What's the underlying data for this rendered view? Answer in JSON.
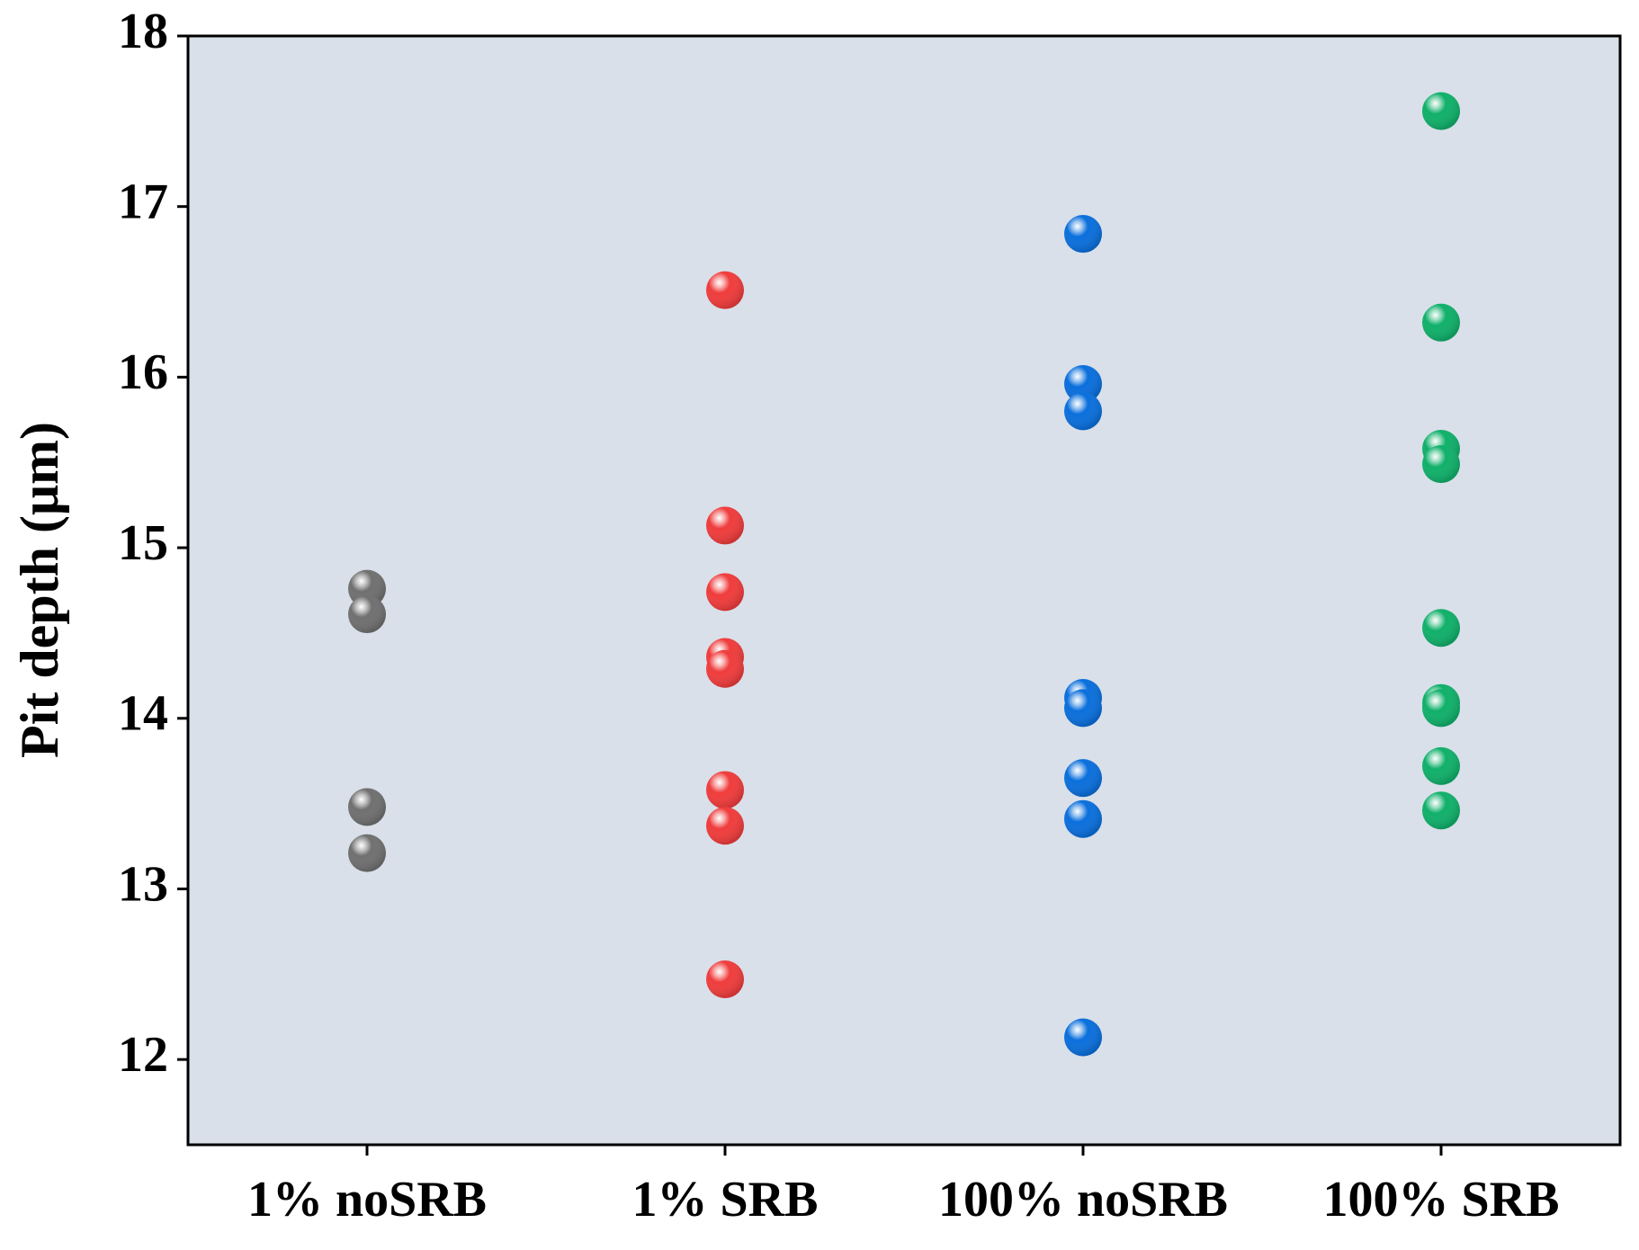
{
  "chart_data": {
    "type": "strip",
    "y_label": "Pit depth (μm)",
    "categories": [
      "1% noSRB",
      "1% SRB",
      "100% noSRB",
      "100% SRB"
    ],
    "series": [
      {
        "color": "#707070",
        "values": [
          14.76,
          14.61,
          13.48,
          13.21
        ]
      },
      {
        "color": "#f03c3c",
        "values": [
          16.51,
          15.13,
          14.74,
          14.36,
          14.29,
          13.58,
          13.37,
          12.47
        ]
      },
      {
        "color": "#0a6fdc",
        "values": [
          16.84,
          15.96,
          15.8,
          14.12,
          14.06,
          13.65,
          13.41,
          12.13
        ]
      },
      {
        "color": "#10b06a",
        "values": [
          17.56,
          16.32,
          15.58,
          15.49,
          14.53,
          14.09,
          14.06,
          13.72,
          13.46
        ]
      }
    ],
    "ylim": [
      11.5,
      18
    ],
    "yticks": [
      12,
      13,
      14,
      15,
      16,
      17,
      18
    ],
    "background": "#d9e0ea"
  }
}
